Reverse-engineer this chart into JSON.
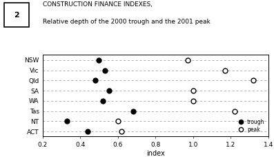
{
  "title_line1": "CONSTRUCTION FINANCE INDEXES,",
  "title_line2": "Relative depth of the 2000 trough and the 2001 peak",
  "xlabel": "index",
  "categories": [
    "NSW",
    "Vic",
    "Qld",
    "SA",
    "WA",
    "Tas",
    "NT",
    "ACT"
  ],
  "trough": [
    0.5,
    0.53,
    0.48,
    0.555,
    0.52,
    0.68,
    0.33,
    0.44
  ],
  "peak": [
    0.97,
    1.17,
    1.32,
    1.0,
    1.0,
    1.22,
    0.6,
    0.62
  ],
  "xlim": [
    0.2,
    1.4
  ],
  "xticks": [
    0.2,
    0.4,
    0.6,
    0.8,
    1.0,
    1.2,
    1.4
  ],
  "xtick_labels": [
    "0.2",
    "0.4",
    "0.6",
    "0.8",
    "1.0",
    "1.2",
    "1.4"
  ],
  "trough_color": "black",
  "peak_color": "white",
  "peak_edge_color": "black",
  "marker_size": 5,
  "dashed_color": "#aaaaaa",
  "background_color": "white",
  "box_num": "2",
  "figsize": [
    3.97,
    2.27
  ],
  "dpi": 100
}
